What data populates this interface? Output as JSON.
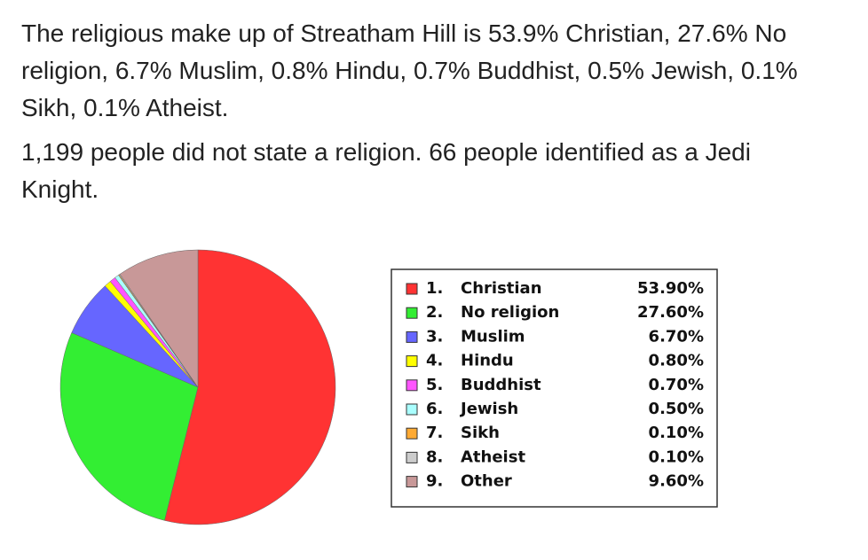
{
  "paragraphs": [
    "The religious make up of Streatham Hill is 53.9% Christian, 27.6% No religion, 6.7% Muslim, 0.8% Hindu, 0.7% Buddhist, 0.5% Jewish, 0.1% Sikh, 0.1% Atheist.",
    "1,199 people did not state a religion. 66 people identified as a Jedi Knight."
  ],
  "chart_data": {
    "type": "pie",
    "legend_index": [
      "1.",
      "2.",
      "3.",
      "4.",
      "5.",
      "6.",
      "7.",
      "8.",
      "9."
    ],
    "categories": [
      "Christian",
      "No religion",
      "Muslim",
      "Hindu",
      "Buddhist",
      "Jewish",
      "Sikh",
      "Atheist",
      "Other"
    ],
    "values": [
      53.9,
      27.6,
      6.7,
      0.8,
      0.7,
      0.5,
      0.1,
      0.1,
      9.6
    ],
    "value_labels": [
      "53.90%",
      "27.60%",
      "6.70%",
      "0.80%",
      "0.70%",
      "0.50%",
      "0.10%",
      "0.10%",
      "9.60%"
    ],
    "colors": [
      "#ff3333",
      "#33ee33",
      "#6666ff",
      "#ffff00",
      "#ff55ff",
      "#aaffff",
      "#ffaa33",
      "#cccccc",
      "#c89898"
    ],
    "legend": "right"
  }
}
